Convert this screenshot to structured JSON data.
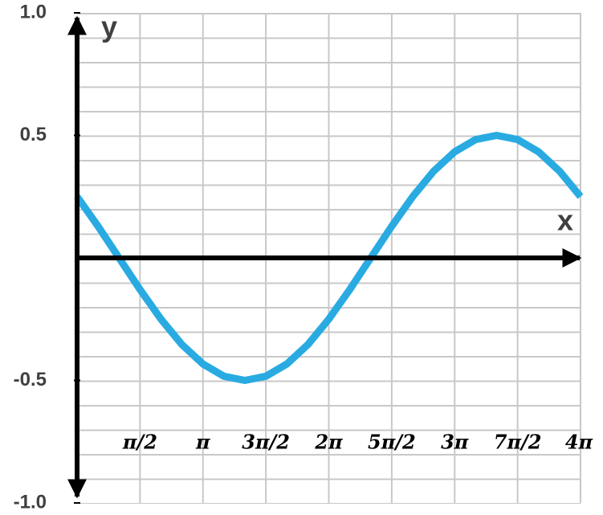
{
  "chart_data": {
    "type": "line",
    "x_label": "x",
    "y_label": "y",
    "x": [
      0,
      0.5236,
      1.0472,
      1.5708,
      2.0944,
      2.618,
      3.1416,
      3.6652,
      4.1888,
      4.7124,
      5.236,
      5.7596,
      6.2832,
      6.8068,
      7.3304,
      7.854,
      8.3776,
      8.9012,
      9.4248,
      9.9484,
      10.472,
      10.9956,
      11.5192,
      12.0428,
      12.5664
    ],
    "series": [
      {
        "color": "#29abe2",
        "values": [
          0.25,
          0.129,
          0,
          -0.129,
          -0.25,
          -0.354,
          -0.433,
          -0.483,
          -0.5,
          -0.483,
          -0.433,
          -0.354,
          -0.25,
          -0.129,
          0,
          0.129,
          0.25,
          0.354,
          0.433,
          0.483,
          0.5,
          0.483,
          0.433,
          0.354,
          0.25
        ]
      }
    ],
    "xlim": [
      0,
      12.5664
    ],
    "ylim": [
      -1,
      1
    ],
    "xticks": [
      {
        "value": 1.5708,
        "label": "π/2"
      },
      {
        "value": 3.1416,
        "label": "π"
      },
      {
        "value": 4.7124,
        "label": "3π/2"
      },
      {
        "value": 6.2832,
        "label": "2π"
      },
      {
        "value": 7.854,
        "label": "5π/2"
      },
      {
        "value": 9.4248,
        "label": "3π"
      },
      {
        "value": 10.9956,
        "label": "7π/2"
      },
      {
        "value": 12.5664,
        "label": "4π"
      }
    ],
    "yticks": [
      {
        "value": 1,
        "label": "1.0"
      },
      0.5,
      -0.5,
      {
        "value": -1,
        "label": "-1.0"
      }
    ],
    "grid": true
  }
}
